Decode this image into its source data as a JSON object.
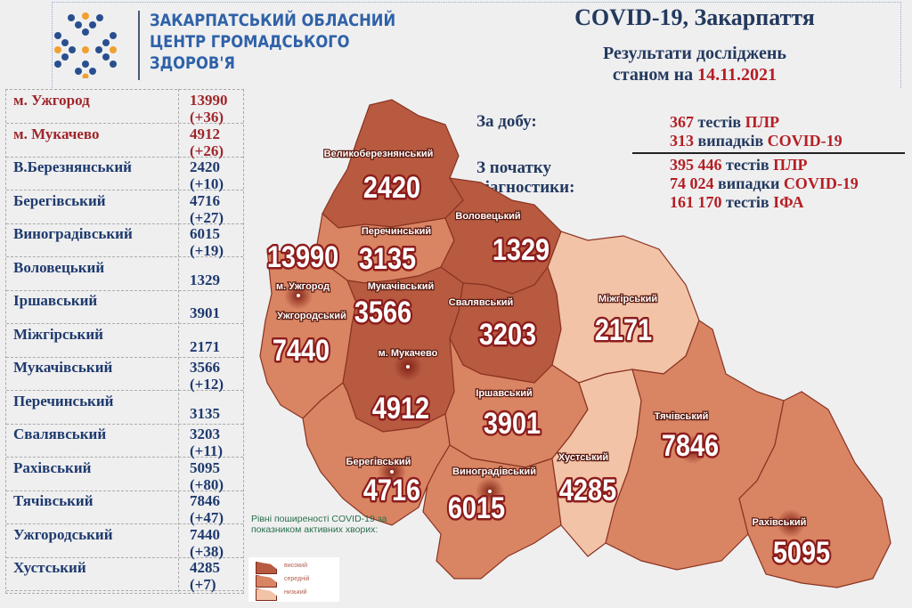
{
  "header": {
    "org_lines": [
      "ЗАКАРПАТСЬКИЙ ОБЛАСНИЙ",
      "ЦЕНТР ГРОМАДСЬКОГО",
      "ЗДОРОВ'Я"
    ],
    "title": "COVID-19, Закарпаття",
    "subtitle_line1": "Результати досліджень",
    "subtitle_prefix": "станом на",
    "date": "14.11.2021"
  },
  "stats": {
    "daily_label": "За добу:",
    "total_label_1": "З початку",
    "total_label_2": "діагностики:",
    "daily": [
      {
        "value": "367",
        "text": "тестів",
        "tag": "ПЛР"
      },
      {
        "value": "313",
        "text": "випадків",
        "tag": "COVID-19"
      }
    ],
    "total": [
      {
        "value": "395 446",
        "text": "тестів",
        "tag": "ПЛР"
      },
      {
        "value": "74 024",
        "text": "випадки",
        "tag": "COVID-19"
      },
      {
        "value": "161 170",
        "text": "тестів",
        "tag": "ІФА"
      }
    ]
  },
  "table": [
    {
      "name": "м. Ужгород",
      "total": "13990",
      "delta": "(+36)",
      "city": true
    },
    {
      "name": "м. Мукачево",
      "total": "4912",
      "delta": "(+26)",
      "city": true
    },
    {
      "name": "В.Березнянський",
      "total": "2420",
      "delta": "(+10)"
    },
    {
      "name": "Берегівський",
      "total": "4716",
      "delta": "(+27)"
    },
    {
      "name": "Виноградівський",
      "total": "6015",
      "delta": "(+19)"
    },
    {
      "name": "Воловецький",
      "total": "1329",
      "delta": ""
    },
    {
      "name": "Іршавський",
      "total": "3901",
      "delta": ""
    },
    {
      "name": "Міжгірський",
      "total": "2171",
      "delta": ""
    },
    {
      "name": "Мукачівський",
      "total": "3566",
      "delta": "(+12)"
    },
    {
      "name": "Перечинський",
      "total": "3135",
      "delta": ""
    },
    {
      "name": "Свалявський",
      "total": "3203",
      "delta": "(+11)"
    },
    {
      "name": "Рахівський",
      "total": "5095",
      "delta": "(+80)"
    },
    {
      "name": "Тячівський",
      "total": "7846",
      "delta": "(+47)"
    },
    {
      "name": "Ужгородський",
      "total": "7440",
      "delta": "(+38)"
    },
    {
      "name": "Хустський",
      "total": "4285",
      "delta": "(+7)"
    }
  ],
  "map": {
    "districts": [
      {
        "id": "velykobereznianskyi",
        "label": "Великоберезнянський",
        "value": "2420",
        "level": "high"
      },
      {
        "id": "perechynskyi",
        "label": "Перечинський",
        "value": "3135",
        "level": "medium"
      },
      {
        "id": "volovetskyi",
        "label": "Воловецький",
        "value": "1329",
        "level": "high"
      },
      {
        "id": "uzhhorodskyi",
        "label": "Ужгородський",
        "value": "7440",
        "level": "medium"
      },
      {
        "id": "mukachivskyi",
        "label": "Мукачівський",
        "value": "3566",
        "level": "high"
      },
      {
        "id": "svaliavskyi",
        "label": "Свалявський",
        "value": "3203",
        "level": "high"
      },
      {
        "id": "mizhhirskyi",
        "label": "Міжгірський",
        "value": "2171",
        "level": "low"
      },
      {
        "id": "irshavskyi",
        "label": "Іршавський",
        "value": "3901",
        "level": "medium"
      },
      {
        "id": "berehivskyi",
        "label": "Берегівський",
        "value": "4716",
        "level": "medium"
      },
      {
        "id": "vynohradivskyi",
        "label": "Виноградівський",
        "value": "6015",
        "level": "medium"
      },
      {
        "id": "khustskyi",
        "label": "Хустський",
        "value": "4285",
        "level": "low"
      },
      {
        "id": "tiachivskyi",
        "label": "Тячівський",
        "value": "7846",
        "level": "medium"
      },
      {
        "id": "rakhivskyi",
        "label": "Рахівський",
        "value": "5095",
        "level": "medium"
      }
    ],
    "cities": [
      {
        "id": "uzhhorod",
        "label": "м. Ужгород",
        "value": "13990"
      },
      {
        "id": "mukachevo",
        "label": "м. Мукачево",
        "value": "4912"
      }
    ],
    "colors": {
      "high": "#b75a40",
      "medium": "#d98462",
      "low": "#f2c3a6",
      "stroke": "#8a3322",
      "number_stroke": "#8c1c1c"
    }
  },
  "legend": {
    "title": "Рівні поширеності COVID-19 за показником активних хворих:",
    "items": [
      {
        "level": "high",
        "label": "високий"
      },
      {
        "level": "medium",
        "label": "середній"
      },
      {
        "level": "low",
        "label": "низький"
      }
    ]
  }
}
